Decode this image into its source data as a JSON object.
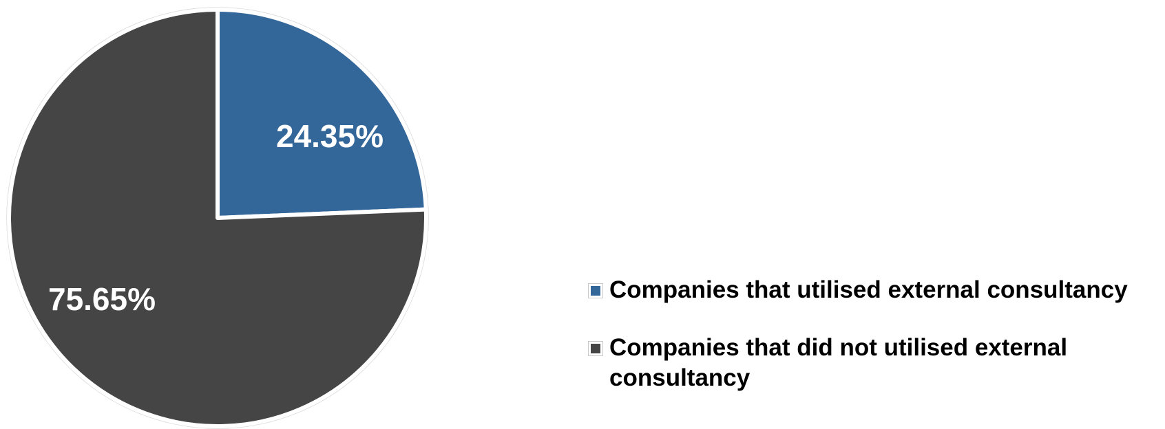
{
  "chart_data": {
    "type": "pie",
    "categories": [
      "Companies that utilised external consultancy",
      "Companies that did not utilised external consultancy"
    ],
    "values": [
      24.35,
      75.65
    ],
    "labels": [
      "24.35%",
      "75.65%"
    ],
    "colors": [
      "#336699",
      "#454545"
    ],
    "title": "",
    "legend": "right"
  }
}
